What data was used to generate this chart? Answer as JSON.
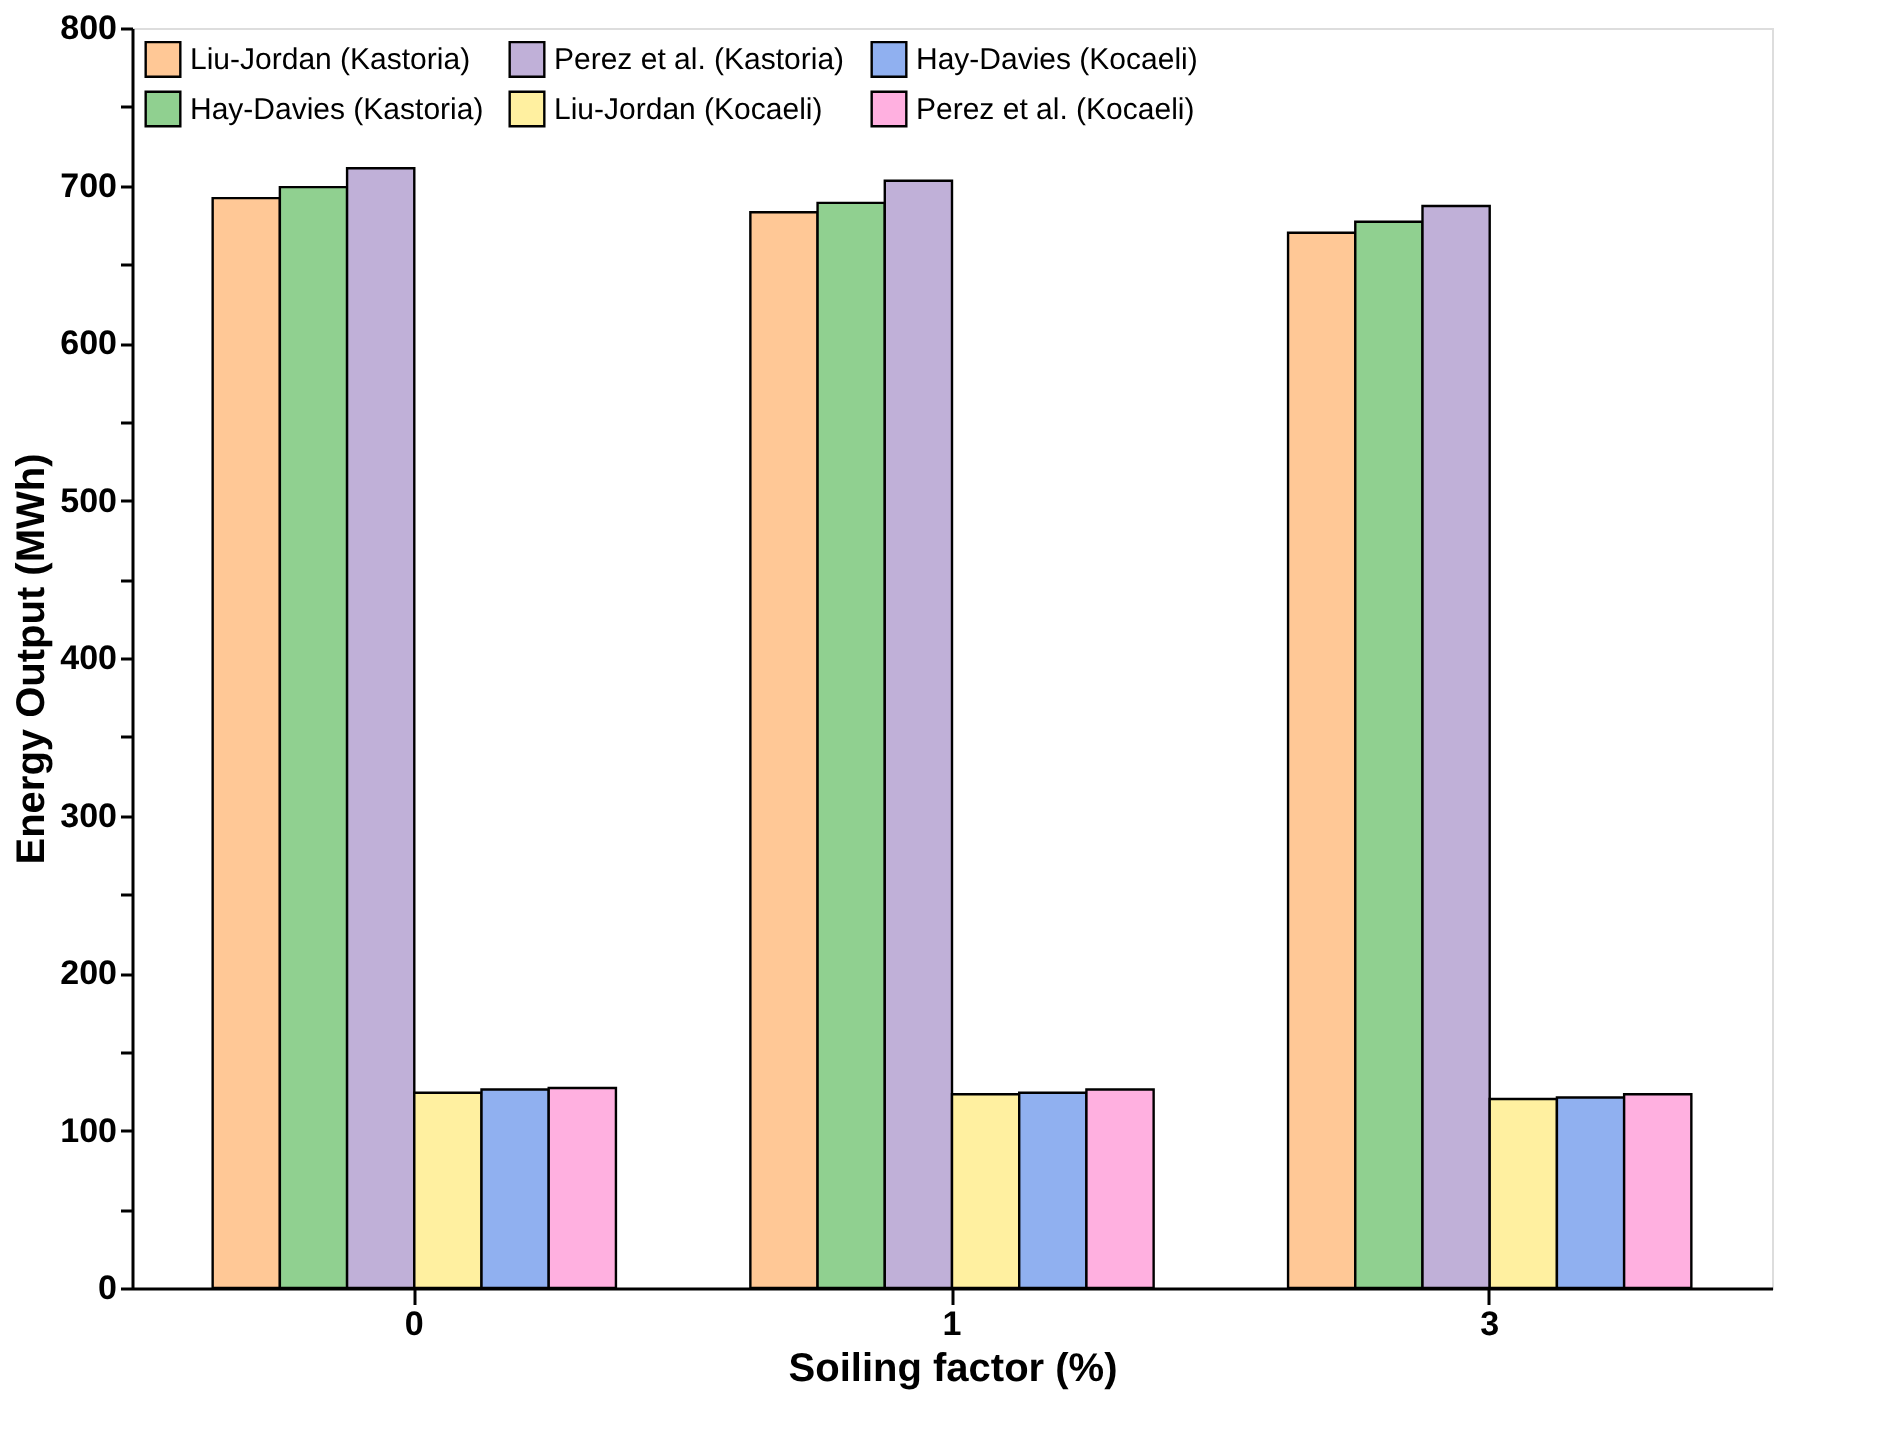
{
  "chart_data": {
    "type": "bar",
    "xlabel": "Soiling factor (%)",
    "ylabel": "Energy Output (MWh)",
    "categories": [
      "0",
      "1",
      "3"
    ],
    "series": [
      {
        "name": "Liu-Jordan (Kastoria)",
        "color": "#ffc896",
        "values": [
          692,
          683,
          670
        ]
      },
      {
        "name": "Hay-Davies  (Kastoria)",
        "color": "#90d090",
        "values": [
          699,
          689,
          677
        ]
      },
      {
        "name": "Perez et al.  (Kastoria)",
        "color": "#c0b0d8",
        "values": [
          711,
          703,
          687
        ]
      },
      {
        "name": "Liu-Jordan (Kocaeli)",
        "color": "#fff0a0",
        "values": [
          124,
          123,
          120
        ]
      },
      {
        "name": "Hay-Davies (Kocaeli)",
        "color": "#90b0f0",
        "values": [
          126,
          124,
          121
        ]
      },
      {
        "name": "Perez et al. (Kocaeli)",
        "color": "#ffb0e0",
        "values": [
          127,
          126,
          123
        ]
      }
    ],
    "ylim": [
      0,
      800
    ],
    "yticks": [
      0,
      {
        "value": 50,
        "label": null
      },
      100,
      {
        "value": 150,
        "label": null
      },
      200,
      {
        "value": 250,
        "label": null
      },
      300,
      {
        "value": 350,
        "label": null
      },
      400,
      {
        "value": 450,
        "label": null
      },
      500,
      {
        "value": 550,
        "label": null
      },
      600,
      {
        "value": 650,
        "label": null
      },
      700,
      {
        "value": 750,
        "label": null
      },
      800
    ],
    "grid": false,
    "legend": "top left"
  }
}
